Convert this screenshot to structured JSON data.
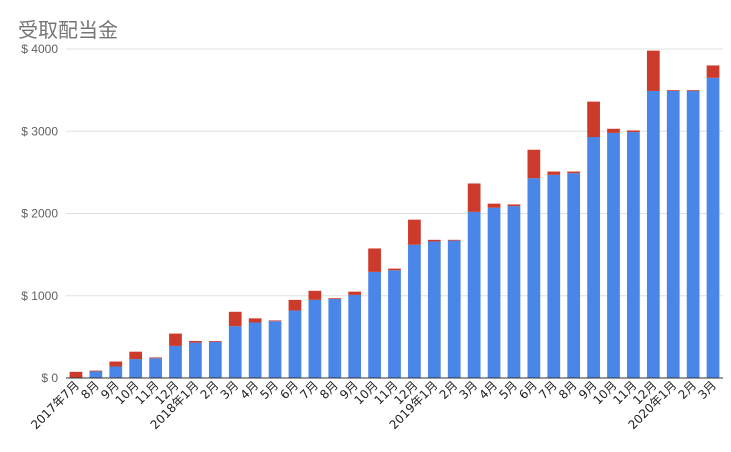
{
  "chart_data": {
    "type": "bar",
    "stacked": true,
    "title": "受取配当金",
    "xlabel": "",
    "ylabel": "",
    "ylim": [
      0,
      4000
    ],
    "yticks": [
      "$ 0",
      "$ 1000",
      "$ 2000",
      "$ 3000",
      "$ 4000"
    ],
    "grid": true,
    "categories": [
      "2017年7月",
      "8月",
      "9月",
      "10月",
      "11月",
      "12月",
      "2018年1月",
      "2月",
      "3月",
      "4月",
      "5月",
      "6月",
      "7月",
      "8月",
      "9月",
      "10月",
      "11月",
      "12月",
      "2019年1月",
      "2月",
      "3月",
      "4月",
      "5月",
      "6月",
      "7月",
      "8月",
      "9月",
      "10月",
      "11月",
      "12月",
      "2020年1月",
      "2月",
      "3月"
    ],
    "series": [
      {
        "color": "#4a86e8",
        "values": [
          0,
          80,
          140,
          230,
          240,
          390,
          430,
          440,
          630,
          675,
          690,
          820,
          950,
          960,
          1010,
          1290,
          1310,
          1620,
          1660,
          1670,
          2020,
          2070,
          2090,
          2430,
          2470,
          2490,
          2930,
          2980,
          2990,
          3490,
          3490,
          3490,
          3650
        ]
      },
      {
        "color": "#cc3a2b",
        "values": [
          75,
          10,
          60,
          90,
          10,
          150,
          20,
          10,
          175,
          50,
          10,
          130,
          110,
          10,
          40,
          285,
          20,
          305,
          20,
          10,
          345,
          50,
          20,
          345,
          40,
          20,
          430,
          50,
          20,
          490,
          10,
          10,
          150
        ]
      }
    ]
  }
}
